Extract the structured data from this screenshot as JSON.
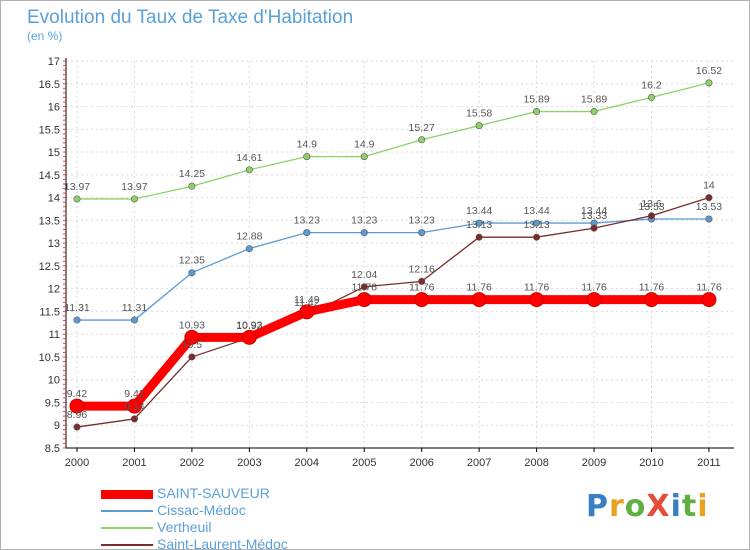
{
  "chart_data": {
    "type": "line",
    "title": "Evolution du Taux de Taxe d'Habitation",
    "ylabel": "(en %)",
    "xlabel": "",
    "categories": [
      "2000",
      "2001",
      "2002",
      "2003",
      "2004",
      "2005",
      "2006",
      "2007",
      "2008",
      "2009",
      "2010",
      "2011"
    ],
    "ylim": [
      8.5,
      17
    ],
    "yticks": [
      "8.5",
      "9",
      "9.5",
      "10",
      "10.5",
      "11",
      "11.5",
      "12",
      "12.5",
      "13",
      "13.5",
      "14",
      "14.5",
      "15",
      "15.5",
      "16",
      "16.5",
      "17"
    ],
    "grid": true,
    "legend_position": "bottom-left",
    "series": [
      {
        "name": "SAINT-SAUVEUR",
        "color": "#ff0000",
        "values": [
          9.42,
          9.42,
          10.93,
          10.93,
          11.49,
          11.76,
          11.76,
          11.76,
          11.76,
          11.76,
          11.76,
          11.76
        ],
        "labels": [
          "9.42",
          "9.42",
          "10.93",
          "10.93",
          "11.49",
          "11.76",
          "11.76",
          "11.76",
          "11.76",
          "11.76",
          "11.76",
          "11.76"
        ]
      },
      {
        "name": "Cissac-Médoc",
        "color": "#5b9bd5",
        "values": [
          11.31,
          11.31,
          12.35,
          12.88,
          13.23,
          13.23,
          13.23,
          13.44,
          13.44,
          13.44,
          13.53,
          13.53
        ],
        "labels": [
          "11.31",
          "11.31",
          "12.35",
          "12.88",
          "13.23",
          "13.23",
          "13.23",
          "13.44",
          "13.44",
          "13.44",
          "13.53",
          "13.53"
        ]
      },
      {
        "name": "Vertheuil",
        "color": "#8ed16a",
        "values": [
          13.97,
          13.97,
          14.25,
          14.61,
          14.9,
          14.9,
          15.27,
          15.58,
          15.89,
          15.89,
          16.2,
          16.52
        ],
        "labels": [
          "13.97",
          "13.97",
          "14.25",
          "14.61",
          "14.9",
          "14.9",
          "15.27",
          "15.58",
          "15.89",
          "15.89",
          "16.2",
          "16.52"
        ]
      },
      {
        "name": "Saint-Laurent-Médoc",
        "color": "#7b2b2b",
        "values": [
          8.96,
          9.14,
          10.5,
          10.92,
          11.42,
          12.04,
          12.16,
          13.13,
          13.13,
          13.33,
          13.6,
          14
        ],
        "labels": [
          "8.96",
          "9.14",
          "10.5",
          "10.92",
          "11.42",
          "12.04",
          "12.16",
          "13.13",
          "13.13",
          "13.33",
          "13.6",
          "14"
        ]
      }
    ]
  },
  "logo": {
    "text": "ProXiti",
    "colors": [
      "#3a7fc4",
      "#e8a21d",
      "#5fb040",
      "#e84a3a",
      "#3a7fc4",
      "#5fb040",
      "#e8a21d"
    ]
  }
}
